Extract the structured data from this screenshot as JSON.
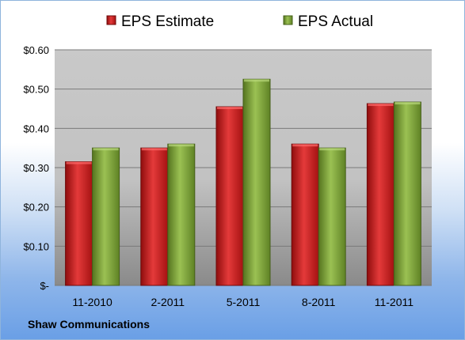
{
  "company": "Shaw Communications",
  "chart_data": {
    "type": "bar",
    "categories": [
      "11-2010",
      "2-2011",
      "5-2011",
      "8-2011",
      "11-2011"
    ],
    "series": [
      {
        "name": "EPS Estimate",
        "color": "#cc1f1f",
        "values": [
          0.315,
          0.35,
          0.455,
          0.36,
          0.463
        ]
      },
      {
        "name": "EPS Actual",
        "color": "#7ea23a",
        "values": [
          0.35,
          0.36,
          0.525,
          0.35,
          0.467
        ]
      }
    ],
    "yticks": [
      {
        "value": 0,
        "label": "$-"
      },
      {
        "value": 0.1,
        "label": "$0.10"
      },
      {
        "value": 0.2,
        "label": "$0.20"
      },
      {
        "value": 0.3,
        "label": "$0.30"
      },
      {
        "value": 0.4,
        "label": "$0.40"
      },
      {
        "value": 0.5,
        "label": "$0.50"
      },
      {
        "value": 0.6,
        "label": "$0.60"
      }
    ],
    "ylim": [
      0,
      0.6
    ],
    "grid": true,
    "legend_position": "top"
  }
}
